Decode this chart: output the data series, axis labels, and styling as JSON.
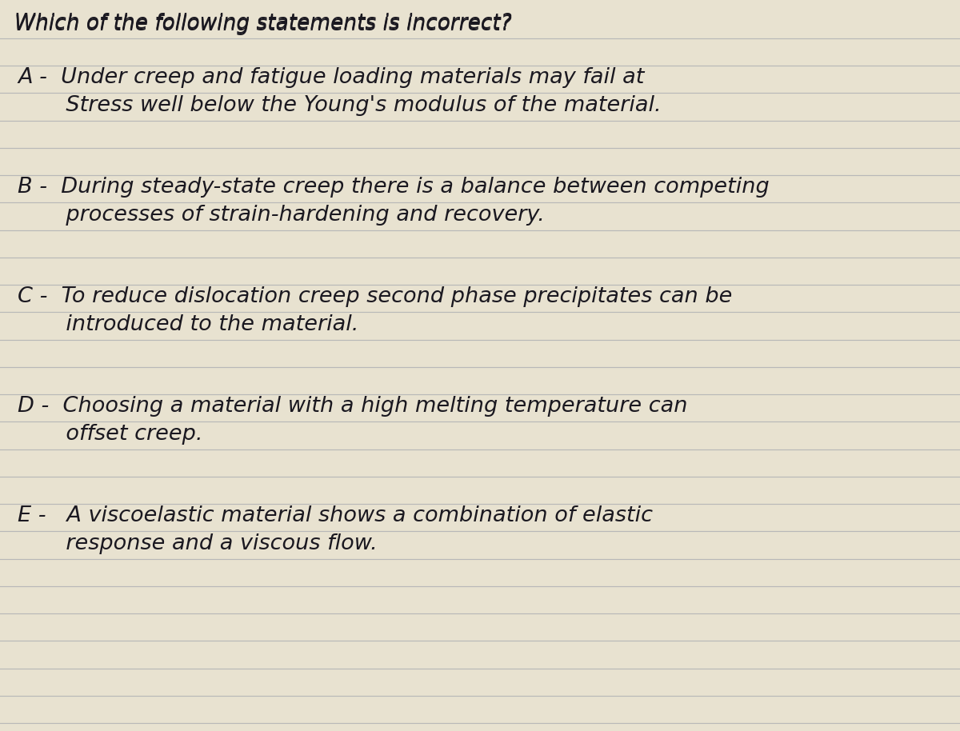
{
  "background_color": "#e8e2d0",
  "line_color": "#a8aab0",
  "text_color": "#1a1820",
  "title": "Which of the following statements is incorrect?",
  "options": [
    {
      "label": "A",
      "line1": "A -  Under creep and fatigue loading materials may fail at",
      "line2": "       Stress well below the Young's modulus of the material."
    },
    {
      "label": "B",
      "line1": "B -  During steady-state creep there is a balance between competing",
      "line2": "       processes of strain-hardening and recovery."
    },
    {
      "label": "C",
      "line1": "C -  To reduce dislocation creep second phase precipitates can be",
      "line2": "       introduced to the material."
    },
    {
      "label": "D",
      "line1": "D -  Choosing a material with a high melting temperature can",
      "line2": "       offset creep."
    },
    {
      "label": "E",
      "line1": "E -   A viscoelastic material shows a combination of elastic",
      "line2": "       response and a viscous flow."
    }
  ],
  "figsize": [
    12.0,
    9.14
  ],
  "dpi": 100,
  "n_lines": 26,
  "font_size": 19.5,
  "title_font_size": 19.0
}
